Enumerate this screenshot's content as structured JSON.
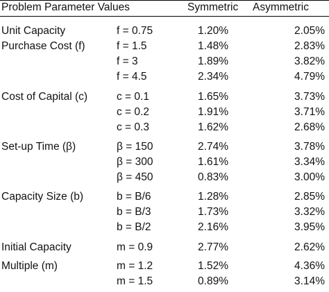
{
  "header": {
    "param_label": "Problem Parameter Values",
    "sym_label": "Symmetric",
    "asym_label": "Asymmetric"
  },
  "rows": [
    {
      "label": "Unit Capacity",
      "param": "f = 0.75",
      "sym": "1.20%",
      "asym": "2.05%"
    },
    {
      "label": "Purchase Cost (f)",
      "param": "f = 1.5",
      "sym": "1.48%",
      "asym": "2.83%"
    },
    {
      "label": "",
      "param": "f = 3",
      "sym": "1.89%",
      "asym": "3.82%"
    },
    {
      "label": "",
      "param": "f = 4.5",
      "sym": "2.34%",
      "asym": "4.79%"
    },
    {
      "label": "Cost of Capital (c)",
      "param": "c = 0.1",
      "sym": "1.65%",
      "asym": "3.73%"
    },
    {
      "label": "",
      "param": "c = 0.2",
      "sym": "1.91%",
      "asym": "3.71%"
    },
    {
      "label": "",
      "param": "c = 0.3",
      "sym": "1.62%",
      "asym": "2.68%"
    },
    {
      "label": "Set-up Time (β)",
      "param": "β = 150",
      "sym": "2.74%",
      "asym": "3.78%"
    },
    {
      "label": "",
      "param": "β = 300",
      "sym": "1.61%",
      "asym": "3.34%"
    },
    {
      "label": "",
      "param": "β = 450",
      "sym": "0.83%",
      "asym": "3.00%"
    },
    {
      "label": "Capacity Size (b)",
      "param": "b = B/6",
      "sym": "1.28%",
      "asym": "2.85%"
    },
    {
      "label": "",
      "param": "b = B/3",
      "sym": "1.73%",
      "asym": "3.32%"
    },
    {
      "label": "",
      "param": "b = B/2",
      "sym": "2.16%",
      "asym": "3.95%"
    },
    {
      "label": "Initial Capacity",
      "param": "m = 0.9",
      "sym": "2.77%",
      "asym": "2.62%"
    },
    {
      "label": "Multiple (m)",
      "param": "m = 1.2",
      "sym": "1.52%",
      "asym": "4.36%"
    },
    {
      "label": "",
      "param": "m = 1.5",
      "sym": "0.89%",
      "asym": "3.14%"
    }
  ]
}
